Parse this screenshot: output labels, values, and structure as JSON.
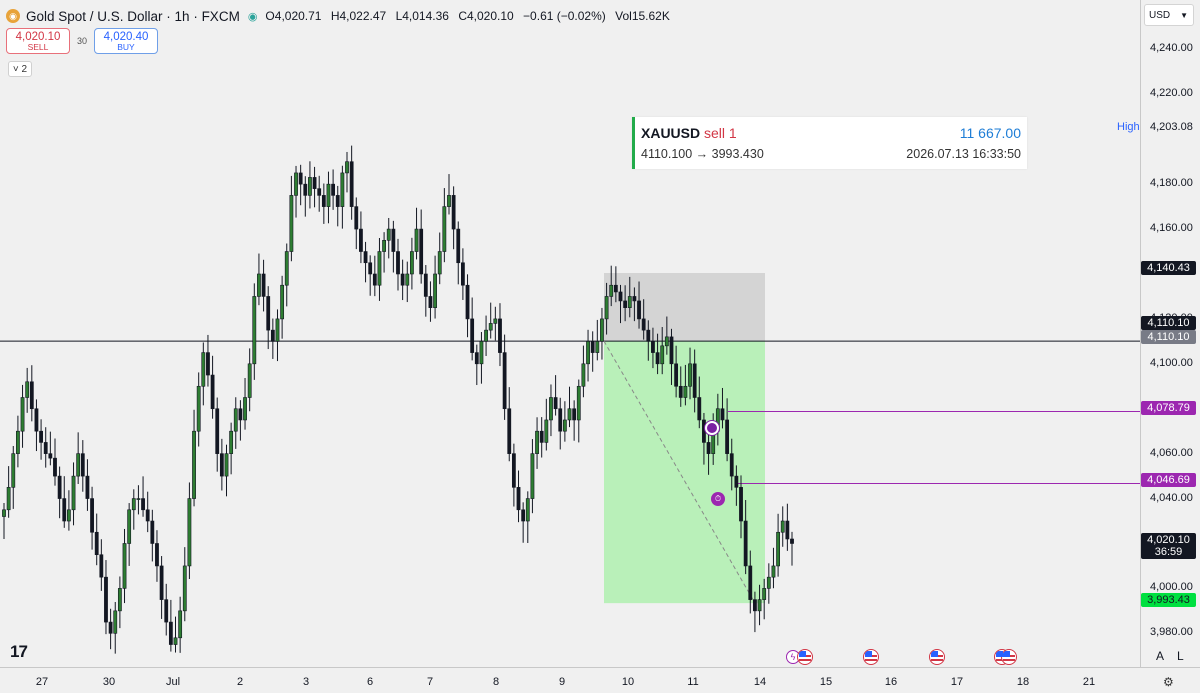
{
  "header": {
    "symbol_icon": "gold-coin-icon",
    "title": "Gold Spot / U.S. Dollar · 1h · FXCM",
    "status_icon": "market-open-icon",
    "ohlc": {
      "o_label": "O",
      "o": "4,020.71",
      "h_label": "H",
      "h": "4,022.47",
      "l_label": "L",
      "l": "4,014.36",
      "c_label": "C",
      "c": "4,020.10",
      "change": "−0.61 (−0.02%)",
      "vol_label": "Vol",
      "vol": "15.62K"
    }
  },
  "trade": {
    "sell_price": "4,020.10",
    "sell_label": "SELL",
    "spread": "30",
    "buy_price": "4,020.40",
    "buy_label": "BUY"
  },
  "legend_toggle": "˅ 2",
  "info_box": {
    "symbol": "XAUUSD",
    "side": "sell 1",
    "pnl": "11 667.00",
    "route": "4110.100 → 3993.430",
    "timestamp": "2026.07.13 16:33:50"
  },
  "logo": "17",
  "currency": "USD",
  "price_ticks": [
    "4,240.00",
    "4,220.00",
    "4,180.00",
    "4,160.00",
    "4,120.00",
    "4,100.00",
    "4,080.00",
    "4,060.00",
    "4,040.00",
    "4,000.00",
    "3,980.00"
  ],
  "high_label": "High",
  "price_tags": {
    "high": "4,203.08",
    "stop": "4,140.43",
    "entry1": "4,110.10",
    "entry2": "4,110.10",
    "line1": "4,078.79",
    "line2": "4,046.69",
    "current": "4,020.10",
    "countdown": "36:59",
    "target": "3,993.43"
  },
  "date_labels": [
    "27",
    "30",
    "Jul",
    "2",
    "3",
    "6",
    "7",
    "8",
    "9",
    "10",
    "11",
    "14",
    "15",
    "16",
    "17",
    "18",
    "21"
  ],
  "axis_controls": {
    "auto": "A",
    "log": "L"
  },
  "colors": {
    "up": "#131722",
    "down": "#131722",
    "body_up": "#2e7d32",
    "profit_zone": "#b9f0b9",
    "loss_zone": "#d4d4d4",
    "marker": "#9c27b0"
  },
  "chart_data": {
    "type": "candlestick",
    "title": "Gold Spot / U.S. Dollar · 1h · FXCM",
    "ylim": [
      3965,
      4262
    ],
    "x_ticks": [
      "27",
      "30",
      "Jul",
      "2",
      "3",
      "6",
      "7",
      "8",
      "9",
      "10",
      "11",
      "14",
      "15",
      "16",
      "17",
      "18",
      "21"
    ],
    "y_ticks": [
      4240,
      4220,
      4180,
      4160,
      4120,
      4100,
      4080,
      4060,
      4040,
      4000,
      3980
    ],
    "horizontal_lines": [
      4110.1,
      4078.79,
      4046.69
    ],
    "position": {
      "side": "sell",
      "entry": 4110.1,
      "stop": 4140.43,
      "target": 3993.43
    },
    "path_close": [
      4035,
      4045,
      4060,
      4070,
      4085,
      4092,
      4080,
      4070,
      4065,
      4060,
      4058,
      4050,
      4040,
      4030,
      4035,
      4050,
      4060,
      4050,
      4040,
      4025,
      4015,
      4005,
      3985,
      3980,
      3990,
      4000,
      4020,
      4035,
      4040,
      4040,
      4035,
      4030,
      4020,
      4010,
      3995,
      3985,
      3975,
      3978,
      3990,
      4010,
      4040,
      4070,
      4090,
      4105,
      4095,
      4080,
      4060,
      4050,
      4060,
      4070,
      4080,
      4075,
      4085,
      4100,
      4130,
      4140,
      4130,
      4115,
      4110,
      4120,
      4135,
      4150,
      4175,
      4185,
      4180,
      4175,
      4183,
      4178,
      4175,
      4170,
      4180,
      4175,
      4170,
      4185,
      4190,
      4170,
      4160,
      4150,
      4145,
      4140,
      4135,
      4150,
      4155,
      4160,
      4150,
      4140,
      4135,
      4140,
      4150,
      4160,
      4140,
      4130,
      4125,
      4140,
      4150,
      4170,
      4175,
      4160,
      4145,
      4135,
      4120,
      4105,
      4100,
      4110,
      4115,
      4118,
      4120,
      4105,
      4080,
      4060,
      4045,
      4035,
      4030,
      4040,
      4060,
      4070,
      4065,
      4075,
      4085,
      4080,
      4070,
      4075,
      4080,
      4075,
      4090,
      4100,
      4110,
      4105,
      4110,
      4120,
      4130,
      4135,
      4132,
      4128,
      4125,
      4130,
      4128,
      4120,
      4115,
      4110,
      4105,
      4100,
      4108,
      4112,
      4100,
      4090,
      4085,
      4090,
      4100,
      4085,
      4075,
      4065,
      4060,
      4070,
      4080,
      4075,
      4060,
      4050,
      4045,
      4030,
      4010,
      3995,
      3990,
      3995,
      4000,
      4005,
      4010,
      4025,
      4030,
      4022,
      4020
    ]
  }
}
